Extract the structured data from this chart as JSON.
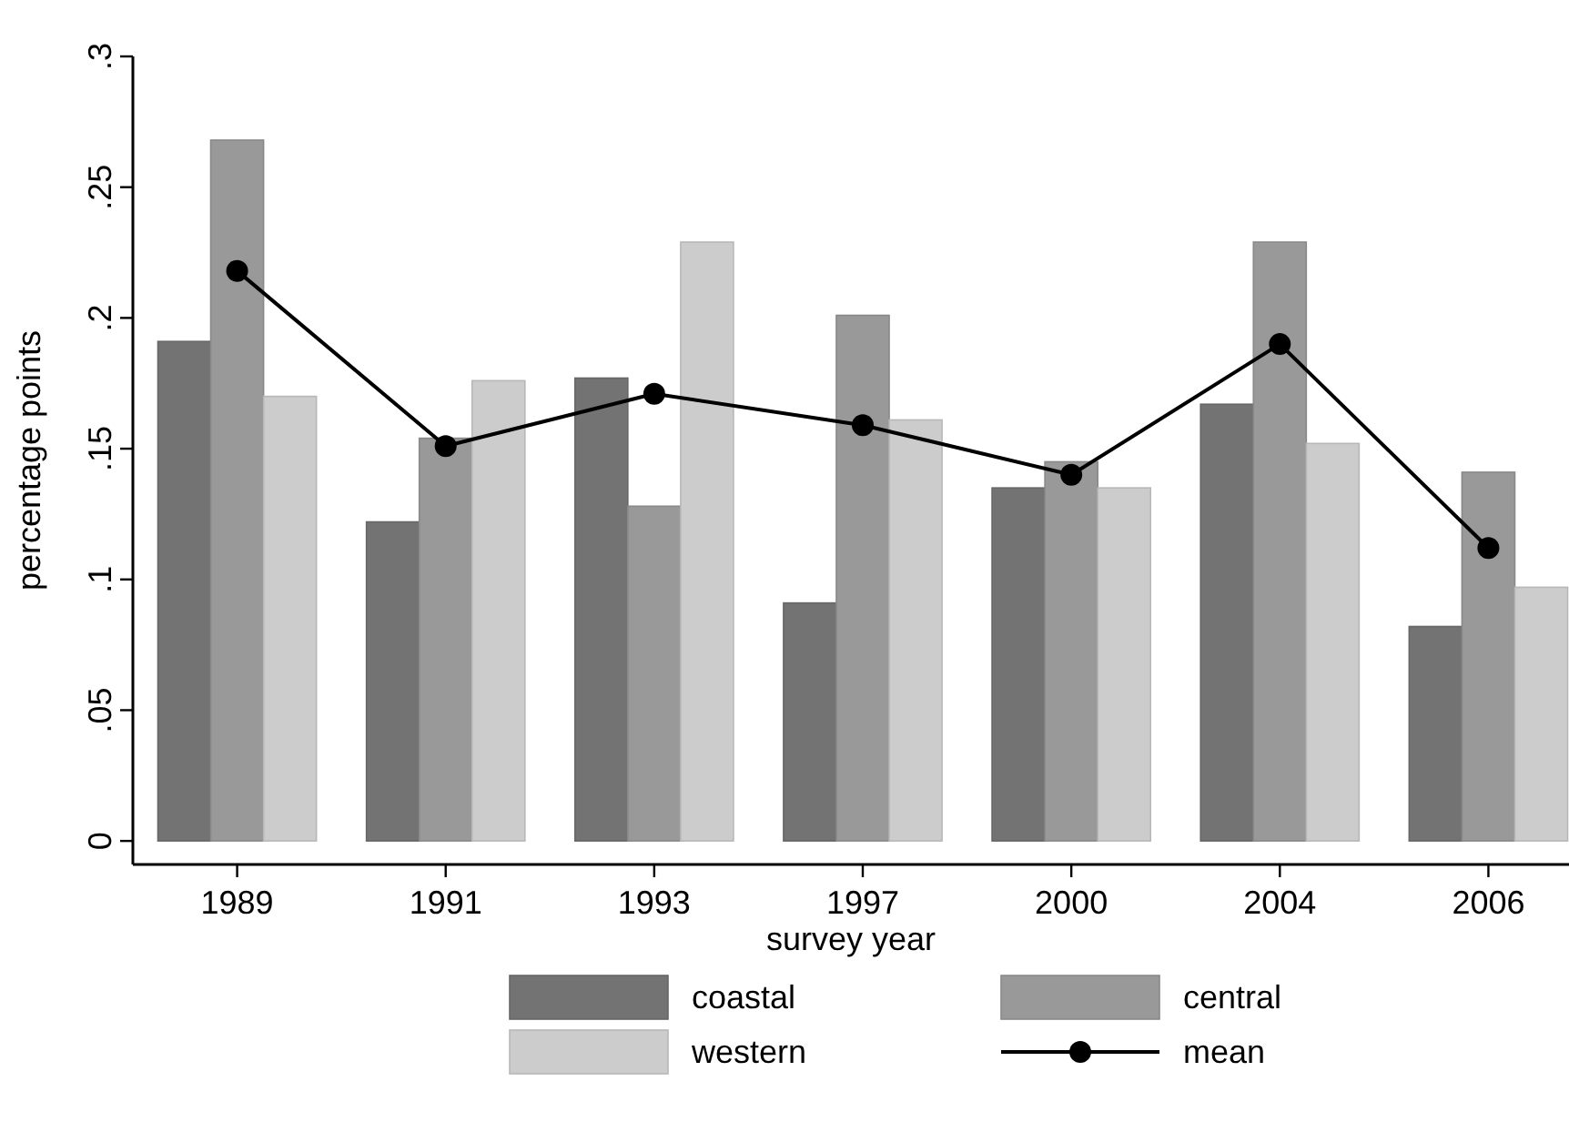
{
  "chart_data": {
    "type": "bar",
    "xlabel": "survey year",
    "ylabel": "percentage points",
    "categories": [
      "1989",
      "1991",
      "1993",
      "1997",
      "2000",
      "2004",
      "2006"
    ],
    "series": [
      {
        "name": "coastal",
        "color": "#737373",
        "values": [
          0.191,
          0.122,
          0.177,
          0.091,
          0.135,
          0.167,
          0.082
        ]
      },
      {
        "name": "central",
        "color": "#999999",
        "values": [
          0.268,
          0.154,
          0.128,
          0.201,
          0.145,
          0.229,
          0.141
        ]
      },
      {
        "name": "western",
        "color": "#cccccc",
        "values": [
          0.17,
          0.176,
          0.229,
          0.161,
          0.135,
          0.152,
          0.097
        ]
      },
      {
        "name": "mean",
        "type": "line",
        "color": "#000000",
        "marker": "circle",
        "values": [
          0.218,
          0.151,
          0.171,
          0.159,
          0.14,
          0.19,
          0.112
        ]
      }
    ],
    "ylim": [
      -0.009,
      0.3
    ],
    "yticks": [
      {
        "value": 0,
        "label": "0"
      },
      {
        "value": 0.05,
        "label": ".05"
      },
      {
        "value": 0.1,
        "label": ".1"
      },
      {
        "value": 0.15,
        "label": ".15"
      },
      {
        "value": 0.2,
        "label": ".2"
      },
      {
        "value": 0.25,
        "label": ".25"
      },
      {
        "value": 0.3,
        "label": ".3"
      }
    ],
    "legend": "bottom"
  }
}
